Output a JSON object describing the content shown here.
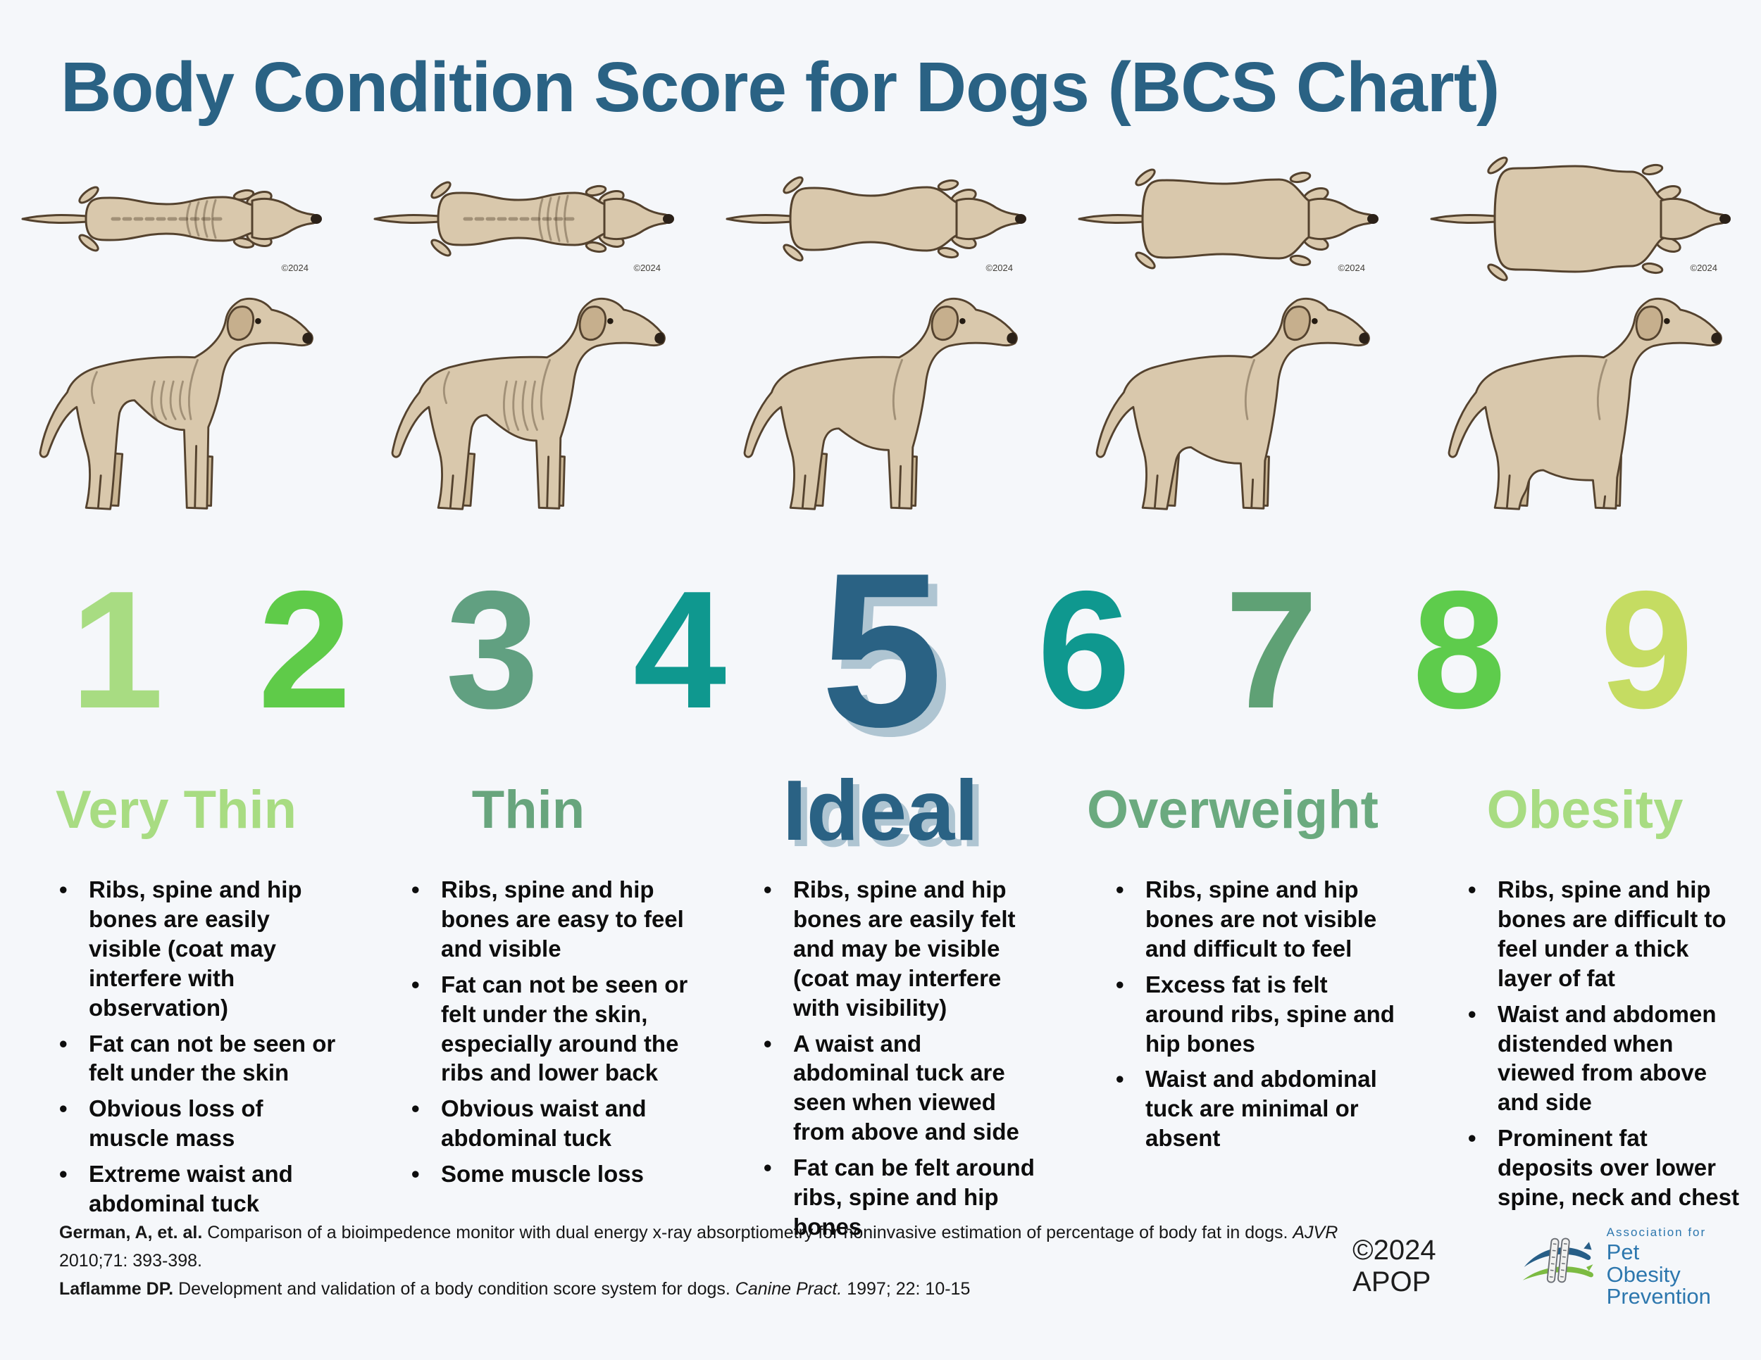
{
  "page": {
    "title": "Body Condition Score for Dogs (BCS Chart)",
    "background_color": "#F5F7FA",
    "title_color": "#2A6284",
    "accent_shadow_color": "#AFC5D2"
  },
  "dog_watermark": "©2024",
  "scores": [
    {
      "value": "1",
      "color": "#A8DC82"
    },
    {
      "value": "2",
      "color": "#5FCB49"
    },
    {
      "value": "3",
      "color": "#61A081"
    },
    {
      "value": "4",
      "color": "#0F988F"
    },
    {
      "value": "5",
      "color": "#2A6284",
      "emphasized": true
    },
    {
      "value": "6",
      "color": "#0F988F"
    },
    {
      "value": "7",
      "color": "#5FA175"
    },
    {
      "value": "8",
      "color": "#5ECC4C"
    },
    {
      "value": "9",
      "color": "#C5DC62"
    }
  ],
  "categories": [
    {
      "label": "Very Thin",
      "color": "#A8DC82",
      "bullets": [
        "Ribs, spine and hip bones are easily visible (coat may interfere with observation)",
        "Fat can not be seen or felt under the skin",
        "Obvious loss of muscle mass",
        "Extreme waist and abdominal tuck"
      ]
    },
    {
      "label": "Thin",
      "color": "#68A57D",
      "bullets": [
        "Ribs, spine and hip bones are easy to feel and visible",
        "Fat can not be seen or felt under the skin, especially around the ribs and lower back",
        "Obvious waist and abdominal tuck",
        "Some muscle loss"
      ]
    },
    {
      "label": "Ideal",
      "color": "#2A6284",
      "emphasized": true,
      "bullets": [
        "Ribs, spine and hip bones are easily felt and may be visible (coat may interfere with visibility)",
        "A waist and abdominal tuck are seen when viewed from above and side",
        "Fat can be felt around ribs, spine and hip bones"
      ]
    },
    {
      "label": "Overweight",
      "color": "#6BAA7F",
      "bullets": [
        "Ribs, spine and hip bones are not visible and difficult to feel",
        "Excess fat is felt around ribs, spine and hip bones",
        "Waist and abdominal tuck are minimal or absent"
      ]
    },
    {
      "label": "Obesity",
      "color": "#A8DC82",
      "bullets": [
        "Ribs, spine and hip bones are difficult to feel under a thick layer of fat",
        "Waist and abdomen distended when viewed from above and side",
        "Prominent fat deposits over lower spine, neck and chest"
      ]
    }
  ],
  "footer": {
    "citations": [
      {
        "authors": "German, A, et. al.",
        "text": "Comparison of a bioimpedence monitor with dual energy x-ray absorptiometry for noninvasive estimation of percentage of body fat in dogs.",
        "journal": "AJVR",
        "tail": "2010;71: 393-398."
      },
      {
        "authors": "Laflamme DP.",
        "text": "Development and validation of a body condition score system for dogs.",
        "journal": "Canine Pract.",
        "tail": "1997; 22: 10-15"
      }
    ],
    "copyright": "©2024 APOP",
    "logo": {
      "line1": "Association for",
      "line2": "Pet Obesity",
      "line3": "Prevention",
      "text_color": "#2D77AE",
      "cat_color": "#275E87",
      "dog_color": "#7CBB42"
    }
  }
}
